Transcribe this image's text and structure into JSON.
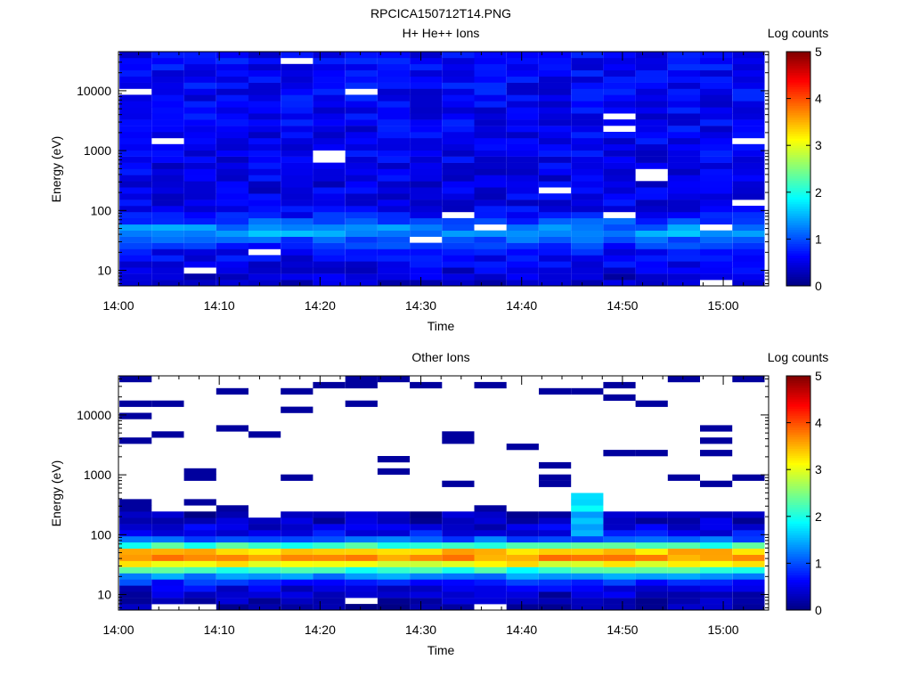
{
  "figure": {
    "filename": "RPCICA150712T14.PNG"
  },
  "chart_data": [
    {
      "type": "heatmap",
      "title": "H+ He++ Ions",
      "xlabel": "Time",
      "ylabel": "Energy (eV)",
      "x_ticks": [
        "14:00",
        "14:10",
        "14:20",
        "14:30",
        "14:40",
        "14:50",
        "15:00"
      ],
      "x_range_minutes": [
        0,
        64.5
      ],
      "y_scale": "log",
      "y_ticks": [
        "10",
        "100",
        "1000",
        "10000"
      ],
      "y_range": [
        5.5,
        45000
      ],
      "colorbar": {
        "label": "Log counts",
        "ticks": [
          "0",
          "1",
          "2",
          "3",
          "4",
          "5"
        ],
        "range": [
          0,
          5
        ]
      },
      "time_bins_minutes": [
        1.7,
        4.9,
        8.1,
        11.3,
        14.5,
        17.7,
        20.9,
        24.1,
        27.3,
        30.5,
        33.7,
        36.9,
        40.1,
        43.3,
        46.5,
        49.7,
        52.9,
        56.1,
        59.3,
        62.5
      ],
      "energy_profile": [
        {
          "energy_ev": 7,
          "log_counts": 0.35
        },
        {
          "energy_ev": 9.5,
          "log_counts": 0.45
        },
        {
          "energy_ev": 13,
          "log_counts": 0.55
        },
        {
          "energy_ev": 18,
          "log_counts": 0.6
        },
        {
          "energy_ev": 24,
          "log_counts": 0.75
        },
        {
          "energy_ev": 32,
          "log_counts": 1.0
        },
        {
          "energy_ev": 42,
          "log_counts": 1.4
        },
        {
          "energy_ev": 55,
          "log_counts": 1.2
        },
        {
          "energy_ev": 75,
          "log_counts": 0.8
        },
        {
          "energy_ev": 100,
          "log_counts": 0.55
        },
        {
          "energy_ev": 200,
          "log_counts": 0.5
        },
        {
          "energy_ev": 1000,
          "log_counts": 0.55
        },
        {
          "energy_ev": 10000,
          "log_counts": 0.6
        },
        {
          "energy_ev": 40000,
          "log_counts": 0.6
        }
      ]
    },
    {
      "type": "heatmap",
      "title": "Other Ions",
      "xlabel": "Time",
      "ylabel": "Energy (eV)",
      "x_ticks": [
        "14:00",
        "14:10",
        "14:20",
        "14:30",
        "14:40",
        "14:50",
        "15:00"
      ],
      "x_range_minutes": [
        0,
        64.5
      ],
      "y_scale": "log",
      "y_ticks": [
        "10",
        "100",
        "1000",
        "10000"
      ],
      "y_range": [
        5.5,
        45000
      ],
      "colorbar": {
        "label": "Log counts",
        "ticks": [
          "0",
          "1",
          "2",
          "3",
          "4",
          "5"
        ],
        "range": [
          0,
          5
        ]
      },
      "time_bins_minutes": [
        1.7,
        4.9,
        8.1,
        11.3,
        14.5,
        17.7,
        20.9,
        24.1,
        27.3,
        30.5,
        33.7,
        36.9,
        40.1,
        43.3,
        46.5,
        49.7,
        52.9,
        56.1,
        59.3,
        62.5
      ],
      "energy_profile": [
        {
          "energy_ev": 7,
          "log_counts": 0.15
        },
        {
          "energy_ev": 9.5,
          "log_counts": 0.3
        },
        {
          "energy_ev": 13,
          "log_counts": 0.5
        },
        {
          "energy_ev": 18,
          "log_counts": 1.0
        },
        {
          "energy_ev": 24,
          "log_counts": 1.8
        },
        {
          "energy_ev": 30,
          "log_counts": 2.8
        },
        {
          "energy_ev": 38,
          "log_counts": 3.6
        },
        {
          "energy_ev": 48,
          "log_counts": 3.9
        },
        {
          "energy_ev": 60,
          "log_counts": 2.6
        },
        {
          "energy_ev": 80,
          "log_counts": 1.2
        },
        {
          "energy_ev": 110,
          "log_counts": 0.55
        },
        {
          "energy_ev": 160,
          "log_counts": 0.35
        },
        {
          "energy_ev": 250,
          "log_counts": 0.15
        },
        {
          "energy_ev": 1000,
          "log_counts": 0.1
        },
        {
          "energy_ev": 10000,
          "log_counts": 0.05
        }
      ]
    }
  ]
}
